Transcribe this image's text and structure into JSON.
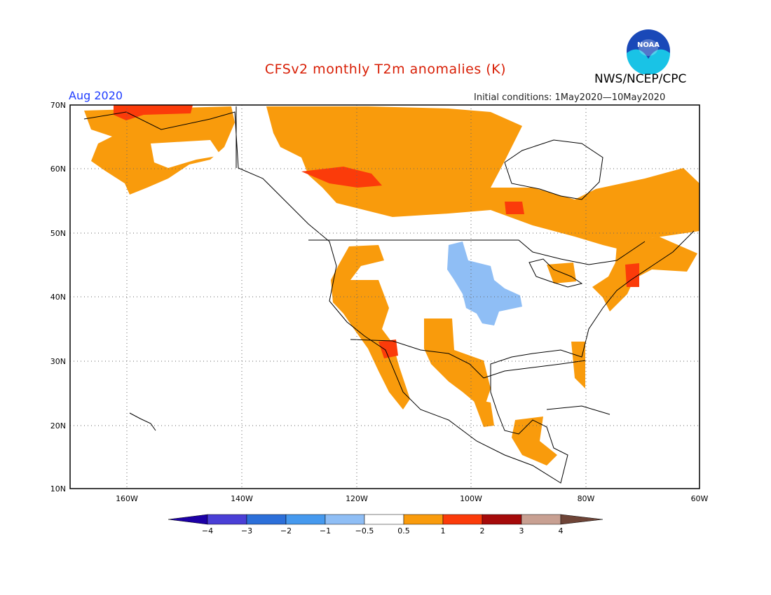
{
  "header": {
    "title": "CFSv2 monthly T2m anomalies (K)",
    "org": "NWS/NCEP/CPC",
    "month": "Aug 2020",
    "initial_conditions": "Initial conditions: 1May2020—10May2020",
    "logo_text": "NOAA"
  },
  "map": {
    "lon_range": [
      -172,
      -60
    ],
    "lat_range": [
      10,
      70
    ],
    "lat_labels": [
      "70N",
      "60N",
      "50N",
      "40N",
      "30N",
      "20N",
      "10N"
    ],
    "lon_labels": [
      "160W",
      "140W",
      "120W",
      "100W",
      "80W",
      "60W"
    ],
    "grid": true
  },
  "legend": {
    "labels": [
      "−4",
      "−3",
      "−2",
      "−1",
      "−0.5",
      "0.5",
      "1",
      "2",
      "3",
      "4"
    ],
    "colors": [
      "#1c00a6",
      "#4a3fd6",
      "#2c6fd9",
      "#4699ee",
      "#8fbef5",
      "#ffffff",
      "#f99b0c",
      "#fb3b0a",
      "#a50a0a",
      "#c8a092",
      "#6e4437"
    ]
  }
}
